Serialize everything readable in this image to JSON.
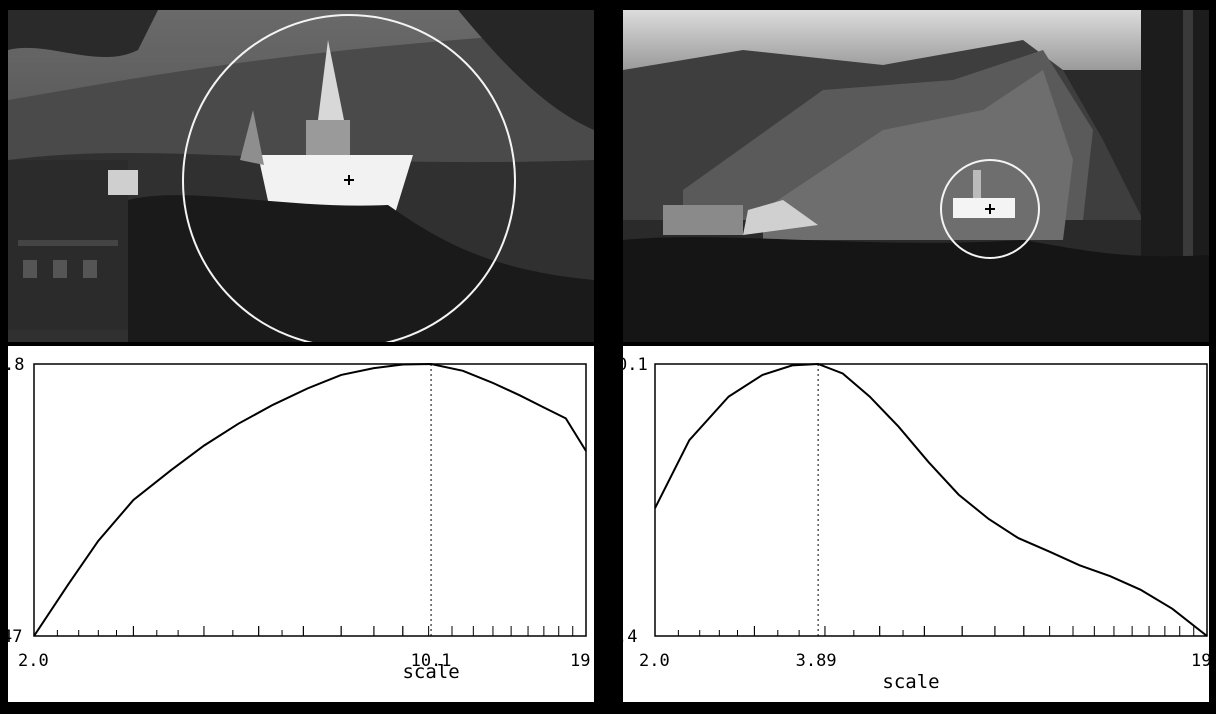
{
  "panels": [
    {
      "id": "left",
      "photo": {
        "description_icon": "church-landscape-photo",
        "marker": "crosshair-icon",
        "circle": "scale-circle"
      }
    },
    {
      "id": "right",
      "photo": {
        "description_icon": "mountain-landscape-photo",
        "marker": "crosshair-icon",
        "circle": "scale-circle"
      }
    }
  ],
  "chart_data": [
    {
      "type": "line",
      "xlabel": "scale",
      "ylabel": "",
      "title": "",
      "x_scale": "log",
      "xlim": [
        2.0,
        19.0
      ],
      "ylim_labels": [
        "47",
        ".8"
      ],
      "x_tick_labels": [
        "2.0",
        "10.1",
        "19."
      ],
      "peak_x": 10.1,
      "peak_label": "10.1",
      "x": [
        2.0,
        2.3,
        2.6,
        3.0,
        3.5,
        4.0,
        4.6,
        5.3,
        6.1,
        7.0,
        8.0,
        9.0,
        10.1,
        11.5,
        13.0,
        14.5,
        16.0,
        17.5,
        19.0
      ],
      "y": [
        0.0,
        0.19,
        0.35,
        0.5,
        0.61,
        0.7,
        0.78,
        0.85,
        0.91,
        0.96,
        0.985,
        0.998,
        1.0,
        0.975,
        0.93,
        0.885,
        0.84,
        0.8,
        0.68
      ],
      "y_units": "normalized"
    },
    {
      "type": "line",
      "xlabel": "scale",
      "ylabel": "",
      "title": "",
      "x_scale": "log",
      "xlim": [
        2.0,
        19.0
      ],
      "ylim_labels": [
        ".4",
        "0.1"
      ],
      "x_tick_labels": [
        "2.0",
        "3.89",
        "19"
      ],
      "peak_x": 3.89,
      "peak_label": "3.89",
      "x": [
        2.0,
        2.3,
        2.7,
        3.1,
        3.5,
        3.89,
        4.3,
        4.8,
        5.4,
        6.1,
        6.9,
        7.8,
        8.8,
        10.0,
        11.3,
        12.8,
        14.5,
        16.5,
        19.0
      ],
      "y": [
        0.47,
        0.72,
        0.88,
        0.96,
        0.995,
        1.0,
        0.965,
        0.88,
        0.77,
        0.64,
        0.52,
        0.43,
        0.36,
        0.31,
        0.26,
        0.22,
        0.17,
        0.1,
        0.0
      ],
      "y_units": "normalized"
    }
  ]
}
